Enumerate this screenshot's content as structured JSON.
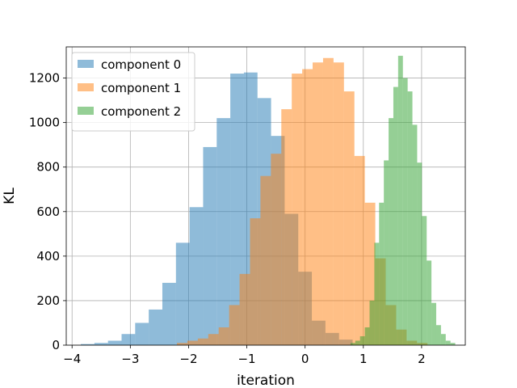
{
  "chart_data": {
    "type": "bar",
    "xlabel": "iteration",
    "ylabel": "KL",
    "xlim": [
      -4.1,
      2.75
    ],
    "ylim": [
      0,
      1340
    ],
    "xticks": [
      -4,
      -3,
      -2,
      -1,
      0,
      1,
      2
    ],
    "xtick_labels": [
      "−4",
      "−3",
      "−2",
      "−1",
      "0",
      "1",
      "2"
    ],
    "yticks": [
      0,
      200,
      400,
      600,
      800,
      1000,
      1200
    ],
    "ytick_labels": [
      "0",
      "200",
      "400",
      "600",
      "800",
      "1000",
      "1200"
    ],
    "grid": true,
    "legend_position": "top-left",
    "alpha": 0.5,
    "series": [
      {
        "name": "component 0",
        "color": "#1f77b4",
        "bin_start": -3.85,
        "bin_width": 0.2333,
        "values": [
          5,
          10,
          20,
          50,
          100,
          160,
          280,
          460,
          620,
          890,
          1020,
          1220,
          1225,
          1110,
          940,
          590,
          330,
          110,
          55,
          25
        ]
      },
      {
        "name": "component 1",
        "color": "#ff7f0e",
        "bin_start": -2.2,
        "bin_width": 0.1792,
        "values": [
          10,
          20,
          30,
          50,
          80,
          180,
          320,
          570,
          760,
          860,
          1060,
          1220,
          1240,
          1270,
          1290,
          1270,
          1140,
          850,
          640,
          390,
          180,
          70,
          20,
          10
        ]
      },
      {
        "name": "component 2",
        "color": "#2ca02c",
        "bin_start": 0.78,
        "bin_width": 0.0817,
        "values": [
          10,
          20,
          40,
          80,
          200,
          460,
          640,
          830,
          1020,
          1160,
          1300,
          1200,
          1140,
          990,
          820,
          580,
          380,
          190,
          90,
          50,
          20,
          10
        ]
      }
    ]
  }
}
